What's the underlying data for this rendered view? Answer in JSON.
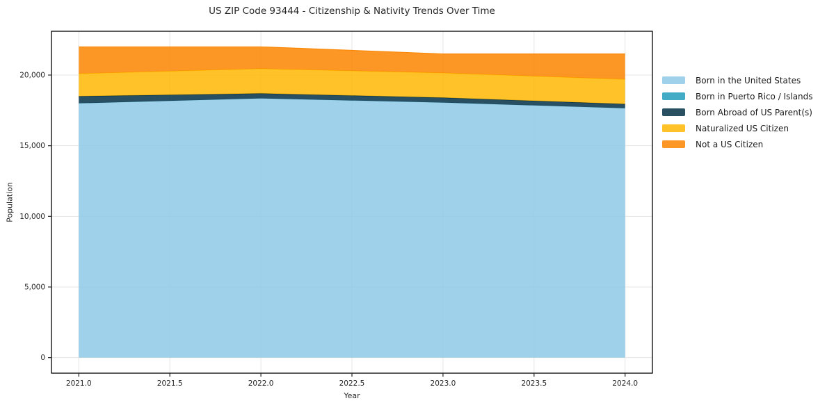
{
  "title": "US ZIP Code 93444 - Citizenship & Nativity Trends Over Time",
  "chart_data": {
    "type": "area",
    "stacked": true,
    "title": "US ZIP Code 93444 - Citizenship & Nativity Trends Over Time",
    "xlabel": "Year",
    "ylabel": "Population",
    "x": [
      2021,
      2022,
      2023,
      2024
    ],
    "xlim": [
      2020.85,
      2024.15
    ],
    "ylim": [
      -1100,
      23100
    ],
    "x_ticks": [
      2021.0,
      2021.5,
      2022.0,
      2022.5,
      2023.0,
      2023.5,
      2024.0
    ],
    "x_tick_labels": [
      "2021.0",
      "2021.5",
      "2022.0",
      "2022.5",
      "2023.0",
      "2023.5",
      "2024.0"
    ],
    "y_ticks": [
      0,
      5000,
      10000,
      15000,
      20000
    ],
    "y_tick_labels": [
      "0",
      "5,000",
      "10,000",
      "15,000",
      "20,000"
    ],
    "grid": true,
    "fill_alpha": 0.85,
    "legend_position": "right of plot, no frame",
    "background_color": "#ffffff",
    "grid_color": "#e5e5e5",
    "text_color": "#262626",
    "series": [
      {
        "name": "Born in the United States",
        "color": "#8ecae6",
        "values": [
          18000,
          18350,
          18050,
          17650
        ]
      },
      {
        "name": "Born in Puerto Rico / Islands",
        "color": "#219ebc",
        "values": [
          0,
          0,
          0,
          0
        ]
      },
      {
        "name": "Born Abroad of US Parent(s)",
        "color": "#023047",
        "values": [
          500,
          350,
          350,
          300
        ]
      },
      {
        "name": "Naturalized US Citizen",
        "color": "#ffb703",
        "values": [
          1600,
          1750,
          1750,
          1750
        ]
      },
      {
        "name": "Not a US Citizen",
        "color": "#fb8500",
        "values": [
          1900,
          1550,
          1350,
          1800
        ]
      }
    ],
    "totals_by_year": [
      22000,
      22000,
      21500,
      21500
    ]
  }
}
